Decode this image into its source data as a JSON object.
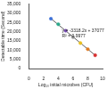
{
  "chart_data": {
    "type": "scatter",
    "x_label": "Log₁₀ initial microbes (CFU)",
    "y_label": "Detectable time (Second)",
    "annotations": [
      "y = -3318.2x + 37077",
      "R² = 0.9977"
    ],
    "xlim": [
      0,
      10
    ],
    "xticks": [
      0,
      2,
      4,
      6,
      8,
      10
    ],
    "ylim": [
      0,
      35000
    ],
    "yticks": [
      0,
      5000,
      10000,
      15000,
      20000,
      25000,
      30000,
      35000
    ],
    "grid": false,
    "series": [
      {
        "type": "scatter",
        "marker": "circle",
        "x": [
          3,
          4,
          5,
          6,
          7,
          8,
          9
        ],
        "values": [
          27000,
          24000,
          20500,
          17000,
          13800,
          10500,
          7200
        ],
        "colors": [
          "#3a6fd8",
          "#2aa88a",
          "#7a4fb5",
          "#9a9a9a",
          "#e8c020",
          "#e07a20",
          "#d83030"
        ]
      },
      {
        "type": "line",
        "line_style": "solid",
        "color": "#333333",
        "x": [
          3,
          9
        ],
        "values": [
          27100,
          7200
        ]
      }
    ]
  }
}
